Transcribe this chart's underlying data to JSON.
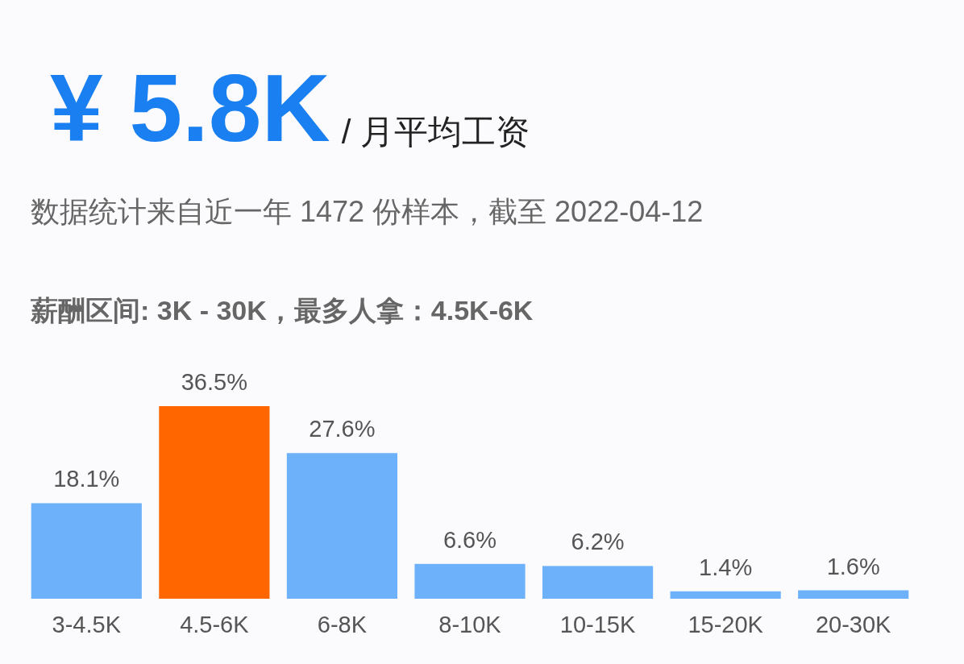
{
  "chart_data": {
    "type": "bar",
    "title": "¥ 5.8K",
    "subtitle": "/ 月平均工资",
    "annotations": [
      "数据统计来自近一年 1472 份样本，截至 2022-04-12",
      "薪酬区间: 3K - 30K，最多人拿：4.5K-6K"
    ],
    "categories": [
      "3-4.5K",
      "4.5-6K",
      "6-8K",
      "8-10K",
      "10-15K",
      "15-20K",
      "20-30K"
    ],
    "values": [
      18.1,
      36.5,
      27.6,
      6.6,
      6.2,
      1.4,
      1.6
    ],
    "colors": [
      "#6cb1f9",
      "#ff6600",
      "#6cb1f9",
      "#6cb1f9",
      "#6cb1f9",
      "#6cb1f9",
      "#6cb1f9"
    ],
    "value_labels": [
      "18.1%",
      "36.5%",
      "27.6%",
      "6.6%",
      "6.2%",
      "1.4%",
      "1.6%"
    ]
  }
}
